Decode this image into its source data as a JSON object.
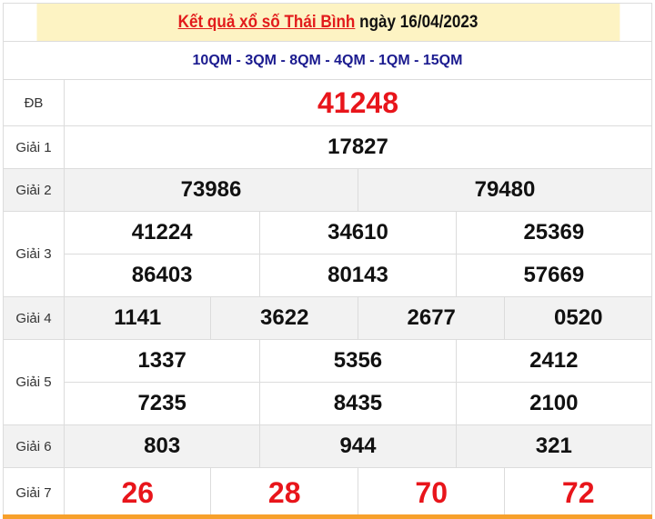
{
  "header": {
    "title_link": "Kết quả xổ số Thái Bình",
    "title_suffix": "ngày 16/04/2023"
  },
  "codes": "10QM - 3QM - 8QM - 4QM - 1QM - 15QM",
  "prizes": {
    "db": {
      "label": "ĐB",
      "numbers": [
        "41248"
      ]
    },
    "g1": {
      "label": "Giải 1",
      "numbers": [
        "17827"
      ]
    },
    "g2": {
      "label": "Giải 2",
      "numbers": [
        "73986",
        "79480"
      ]
    },
    "g3": {
      "label": "Giải 3",
      "numbers": [
        "41224",
        "34610",
        "25369",
        "86403",
        "80143",
        "57669"
      ]
    },
    "g4": {
      "label": "Giải 4",
      "numbers": [
        "1141",
        "3622",
        "2677",
        "0520"
      ]
    },
    "g5": {
      "label": "Giải 5",
      "numbers": [
        "1337",
        "5356",
        "2412",
        "7235",
        "8435",
        "2100"
      ]
    },
    "g6": {
      "label": "Giải 6",
      "numbers": [
        "803",
        "944",
        "321"
      ]
    },
    "g7": {
      "label": "Giải 7",
      "numbers": [
        "26",
        "28",
        "70",
        "72"
      ]
    }
  },
  "colors": {
    "accent": "#e8151b",
    "header_bg": "#fdf3c3",
    "codes": "#1b1b8f",
    "footer_bar": "#f7a02b"
  }
}
